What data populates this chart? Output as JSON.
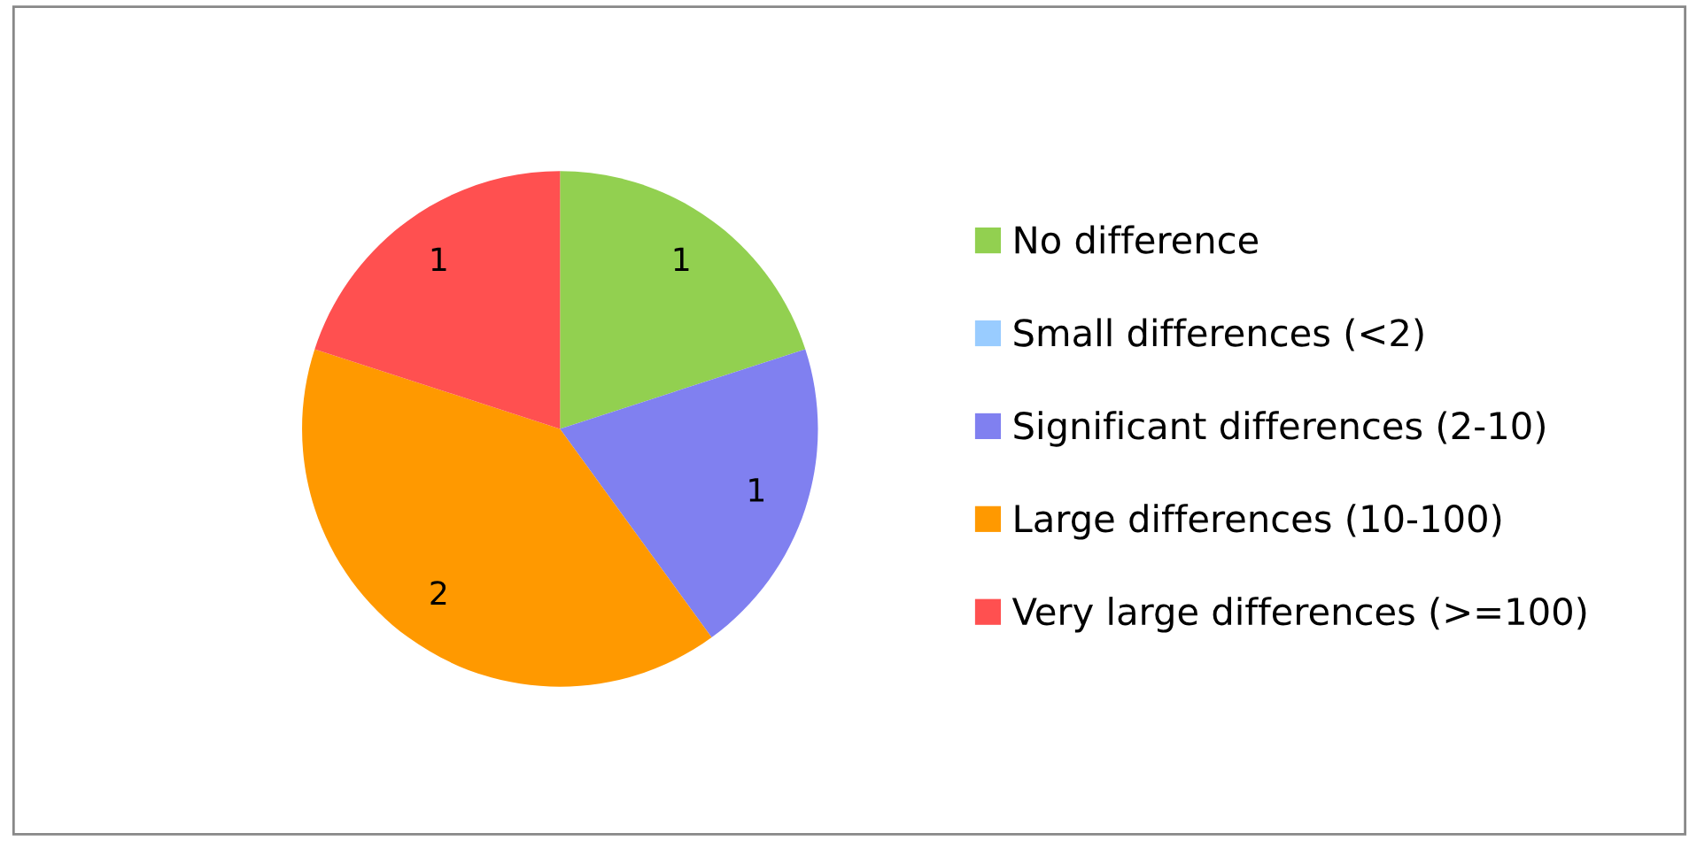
{
  "chart_data": {
    "type": "pie",
    "categories": [
      "No difference",
      "Small differences (<2)",
      "Significant differences (2-10)",
      "Large differences (10-100)",
      "Very large differences (>=100)"
    ],
    "values": [
      1,
      0,
      1,
      2,
      1
    ],
    "colors": [
      "#92d050",
      "#99ccff",
      "#8080f0",
      "#ff9900",
      "#ff5050"
    ],
    "value_labels": [
      "1",
      null,
      "1",
      "2",
      "1"
    ],
    "legend": "right"
  }
}
